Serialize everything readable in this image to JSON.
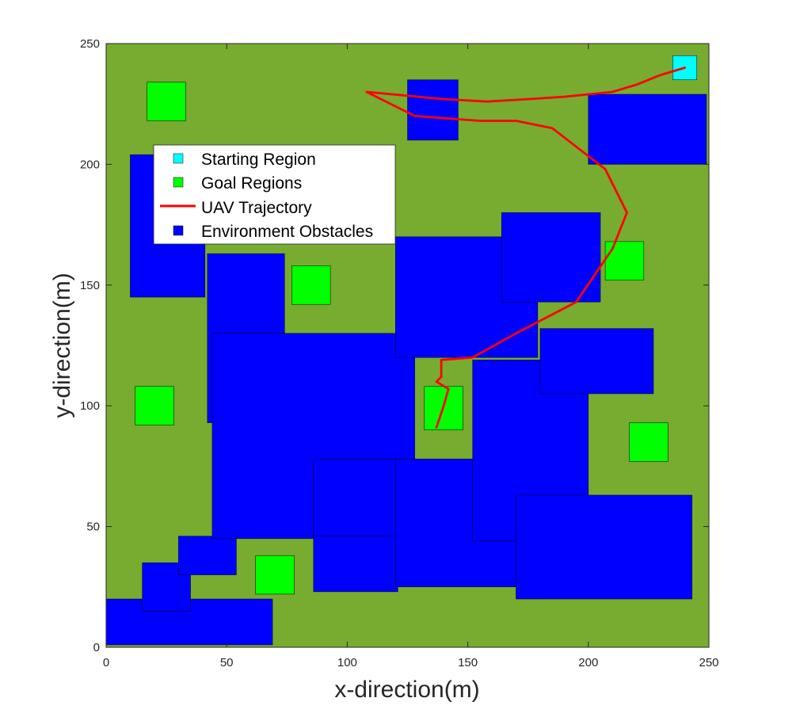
{
  "chart_data": {
    "type": "scatter",
    "xlabel": "x-direction(m)",
    "ylabel": "y-direction(m)",
    "xlim": [
      0,
      250
    ],
    "ylim": [
      0,
      250
    ],
    "xticks": [
      0,
      50,
      100,
      150,
      200,
      250
    ],
    "yticks": [
      0,
      50,
      100,
      150,
      200,
      250
    ],
    "grid": false,
    "legend_placement": "upper-left",
    "colors": {
      "background": "#77AC30",
      "starting_region": "#00FFFF",
      "goal_regions": "#00FF00",
      "trajectory": "#FF0000",
      "obstacles": "#0000FF"
    },
    "legend": [
      {
        "label": "Starting Region",
        "kind": "square",
        "color": "#00FFFF"
      },
      {
        "label": "Goal Regions",
        "kind": "square",
        "color": "#00FF00"
      },
      {
        "label": "UAV Trajectory",
        "kind": "line",
        "color": "#FF0000"
      },
      {
        "label": "Environment Obstacles",
        "kind": "square",
        "color": "#0000FF"
      }
    ],
    "starting_region": [
      {
        "x0": 235,
        "y0": 235,
        "x1": 245,
        "y1": 245
      }
    ],
    "goal_regions": [
      {
        "x0": 17,
        "y0": 218,
        "x1": 33,
        "y1": 234
      },
      {
        "x0": 77,
        "y0": 142,
        "x1": 93,
        "y1": 158
      },
      {
        "x0": 12,
        "y0": 92,
        "x1": 28,
        "y1": 108
      },
      {
        "x0": 132,
        "y0": 90,
        "x1": 148,
        "y1": 108
      },
      {
        "x0": 62,
        "y0": 22,
        "x1": 78,
        "y1": 38
      },
      {
        "x0": 207,
        "y0": 152,
        "x1": 223,
        "y1": 168
      },
      {
        "x0": 217,
        "y0": 77,
        "x1": 233,
        "y1": 93
      }
    ],
    "obstacles": [
      {
        "x0": 0,
        "y0": 1,
        "x1": 69,
        "y1": 20
      },
      {
        "x0": 15,
        "y0": 15,
        "x1": 35,
        "y1": 35
      },
      {
        "x0": 30,
        "y0": 30,
        "x1": 54,
        "y1": 46
      },
      {
        "x0": 10,
        "y0": 145,
        "x1": 41,
        "y1": 204
      },
      {
        "x0": 42,
        "y0": 93,
        "x1": 74,
        "y1": 163
      },
      {
        "x0": 44,
        "y0": 45,
        "x1": 128,
        "y1": 130
      },
      {
        "x0": 86,
        "y0": 23,
        "x1": 121,
        "y1": 78
      },
      {
        "x0": 86,
        "y0": 46,
        "x1": 176,
        "y1": 78
      },
      {
        "x0": 120,
        "y0": 25,
        "x1": 176,
        "y1": 78
      },
      {
        "x0": 120,
        "y0": 120,
        "x1": 179,
        "y1": 170
      },
      {
        "x0": 164,
        "y0": 143,
        "x1": 205,
        "y1": 180
      },
      {
        "x0": 152,
        "y0": 44,
        "x1": 200,
        "y1": 119
      },
      {
        "x0": 180,
        "y0": 105,
        "x1": 227,
        "y1": 132
      },
      {
        "x0": 170,
        "y0": 20,
        "x1": 243,
        "y1": 63
      },
      {
        "x0": 125,
        "y0": 210,
        "x1": 146,
        "y1": 235
      },
      {
        "x0": 200,
        "y0": 200,
        "x1": 249,
        "y1": 229
      }
    ],
    "trajectory": {
      "x": [
        240,
        230,
        220,
        210,
        190,
        175,
        158,
        140,
        108,
        128,
        155,
        170,
        185,
        207,
        216,
        210,
        195,
        170,
        152,
        139,
        139,
        137,
        142,
        140,
        137
      ],
      "y": [
        240,
        237,
        233,
        230,
        228,
        227,
        226,
        227,
        230,
        220,
        218,
        218,
        215,
        198,
        180,
        165,
        143,
        130,
        120,
        119,
        112,
        110,
        107,
        100,
        91
      ]
    }
  }
}
